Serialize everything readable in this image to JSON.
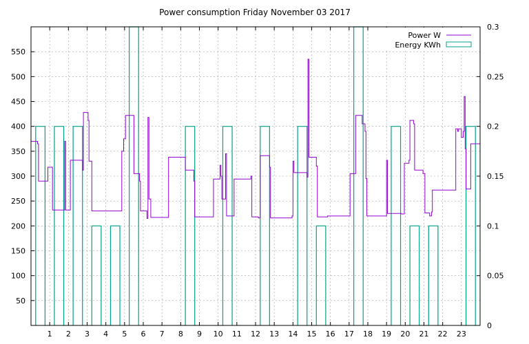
{
  "chart_data": {
    "type": "line",
    "title": "Power consumption Friday November 03 2017",
    "xlabel": "",
    "ylabel": "",
    "x_range": [
      0,
      24
    ],
    "x_ticks": [
      1,
      2,
      3,
      4,
      5,
      6,
      7,
      8,
      9,
      10,
      11,
      12,
      13,
      14,
      15,
      16,
      17,
      18,
      19,
      20,
      21,
      22,
      23
    ],
    "y_left_range": [
      0,
      600
    ],
    "y_left_ticks": [
      50,
      100,
      150,
      200,
      250,
      300,
      350,
      400,
      450,
      500,
      550
    ],
    "y_right_range": [
      0,
      0.3
    ],
    "y_right_ticks": [
      "0",
      "0.05",
      "0.1",
      "0.15",
      "0.2",
      "0.25",
      "0.3"
    ],
    "grid": true,
    "legend_position": "top-right",
    "series": [
      {
        "name": "Power W",
        "axis": "left",
        "color": "#9400d3",
        "style": "line",
        "points": [
          [
            0.0,
            370
          ],
          [
            0.35,
            370
          ],
          [
            0.35,
            365
          ],
          [
            0.4,
            365
          ],
          [
            0.4,
            290
          ],
          [
            0.9,
            290
          ],
          [
            0.9,
            318
          ],
          [
            1.15,
            318
          ],
          [
            1.15,
            232
          ],
          [
            1.8,
            232
          ],
          [
            1.8,
            370
          ],
          [
            1.85,
            370
          ],
          [
            1.85,
            232
          ],
          [
            2.1,
            232
          ],
          [
            2.1,
            332
          ],
          [
            2.75,
            332
          ],
          [
            2.75,
            312
          ],
          [
            2.8,
            312
          ],
          [
            2.8,
            428
          ],
          [
            3.05,
            428
          ],
          [
            3.05,
            412
          ],
          [
            3.1,
            412
          ],
          [
            3.1,
            330
          ],
          [
            3.25,
            330
          ],
          [
            3.25,
            230
          ],
          [
            4.85,
            230
          ],
          [
            4.85,
            350
          ],
          [
            4.95,
            350
          ],
          [
            4.95,
            375
          ],
          [
            5.05,
            375
          ],
          [
            5.05,
            422
          ],
          [
            5.5,
            422
          ],
          [
            5.5,
            305
          ],
          [
            5.8,
            305
          ],
          [
            5.8,
            290
          ],
          [
            5.85,
            290
          ],
          [
            5.85,
            230
          ],
          [
            6.2,
            230
          ],
          [
            6.2,
            215
          ],
          [
            6.25,
            215
          ],
          [
            6.25,
            418
          ],
          [
            6.3,
            418
          ],
          [
            6.3,
            254
          ],
          [
            6.4,
            254
          ],
          [
            6.4,
            217
          ],
          [
            7.35,
            217
          ],
          [
            7.35,
            338
          ],
          [
            8.25,
            338
          ],
          [
            8.25,
            312
          ],
          [
            8.7,
            312
          ],
          [
            8.7,
            290
          ],
          [
            8.75,
            290
          ],
          [
            8.75,
            218
          ],
          [
            9.75,
            218
          ],
          [
            9.75,
            294
          ],
          [
            10.1,
            294
          ],
          [
            10.1,
            322
          ],
          [
            10.15,
            322
          ],
          [
            10.15,
            300
          ],
          [
            10.2,
            300
          ],
          [
            10.2,
            254
          ],
          [
            10.4,
            254
          ],
          [
            10.4,
            345
          ],
          [
            10.45,
            345
          ],
          [
            10.45,
            220
          ],
          [
            10.85,
            220
          ],
          [
            10.85,
            294
          ],
          [
            11.75,
            294
          ],
          [
            11.75,
            300
          ],
          [
            11.8,
            300
          ],
          [
            11.8,
            218
          ],
          [
            12.15,
            218
          ],
          [
            12.15,
            216
          ],
          [
            12.25,
            216
          ],
          [
            12.25,
            341
          ],
          [
            12.75,
            341
          ],
          [
            12.75,
            318
          ],
          [
            12.8,
            318
          ],
          [
            12.8,
            216
          ],
          [
            13.95,
            216
          ],
          [
            13.95,
            220
          ],
          [
            14.0,
            220
          ],
          [
            14.0,
            330
          ],
          [
            14.05,
            330
          ],
          [
            14.05,
            307
          ],
          [
            14.75,
            307
          ],
          [
            14.75,
            298
          ],
          [
            14.8,
            298
          ],
          [
            14.8,
            535
          ],
          [
            14.85,
            535
          ],
          [
            14.85,
            338
          ],
          [
            15.25,
            338
          ],
          [
            15.25,
            320
          ],
          [
            15.3,
            320
          ],
          [
            15.3,
            218
          ],
          [
            15.85,
            218
          ],
          [
            15.85,
            220
          ],
          [
            17.05,
            220
          ],
          [
            17.05,
            305
          ],
          [
            17.35,
            305
          ],
          [
            17.35,
            422
          ],
          [
            17.7,
            422
          ],
          [
            17.7,
            405
          ],
          [
            17.85,
            405
          ],
          [
            17.85,
            390
          ],
          [
            17.9,
            390
          ],
          [
            17.9,
            295
          ],
          [
            17.95,
            295
          ],
          [
            17.95,
            220
          ],
          [
            19.0,
            220
          ],
          [
            19.0,
            332
          ],
          [
            19.05,
            332
          ],
          [
            19.05,
            225
          ],
          [
            19.8,
            225
          ],
          [
            19.8,
            224
          ],
          [
            19.95,
            224
          ],
          [
            19.95,
            326
          ],
          [
            20.2,
            326
          ],
          [
            20.2,
            332
          ],
          [
            20.25,
            332
          ],
          [
            20.25,
            412
          ],
          [
            20.45,
            412
          ],
          [
            20.45,
            405
          ],
          [
            20.5,
            405
          ],
          [
            20.5,
            312
          ],
          [
            20.95,
            312
          ],
          [
            20.95,
            305
          ],
          [
            21.05,
            305
          ],
          [
            21.05,
            226
          ],
          [
            21.3,
            226
          ],
          [
            21.3,
            220
          ],
          [
            21.4,
            220
          ],
          [
            21.4,
            228
          ],
          [
            21.45,
            228
          ],
          [
            21.45,
            272
          ],
          [
            22.7,
            272
          ],
          [
            22.7,
            395
          ],
          [
            22.8,
            395
          ],
          [
            22.8,
            390
          ],
          [
            22.85,
            390
          ],
          [
            22.85,
            395
          ],
          [
            23.0,
            395
          ],
          [
            23.0,
            378
          ],
          [
            23.1,
            378
          ],
          [
            23.1,
            390
          ],
          [
            23.15,
            390
          ],
          [
            23.15,
            460
          ],
          [
            23.2,
            460
          ],
          [
            23.2,
            355
          ],
          [
            23.25,
            355
          ],
          [
            23.25,
            274
          ],
          [
            23.5,
            274
          ],
          [
            23.5,
            365
          ],
          [
            24.0,
            365
          ]
        ]
      },
      {
        "name": "Energy KWh",
        "axis": "right",
        "color": "#00a08a",
        "style": "bars",
        "bars": [
          [
            0,
            0.2
          ],
          [
            1,
            0.2
          ],
          [
            2,
            0.2
          ],
          [
            3,
            0.1
          ],
          [
            4,
            0.1
          ],
          [
            5,
            0.3
          ],
          [
            6,
            0
          ],
          [
            7,
            0
          ],
          [
            8,
            0.2
          ],
          [
            9,
            0
          ],
          [
            10,
            0.2
          ],
          [
            11,
            0
          ],
          [
            12,
            0.2
          ],
          [
            13,
            0
          ],
          [
            14,
            0.2
          ],
          [
            15,
            0.1
          ],
          [
            16,
            0
          ],
          [
            17,
            0.3
          ],
          [
            18,
            0
          ],
          [
            19,
            0.2
          ],
          [
            20,
            0.1
          ],
          [
            21,
            0.1
          ],
          [
            22,
            0
          ],
          [
            23,
            0.2
          ]
        ]
      }
    ]
  }
}
